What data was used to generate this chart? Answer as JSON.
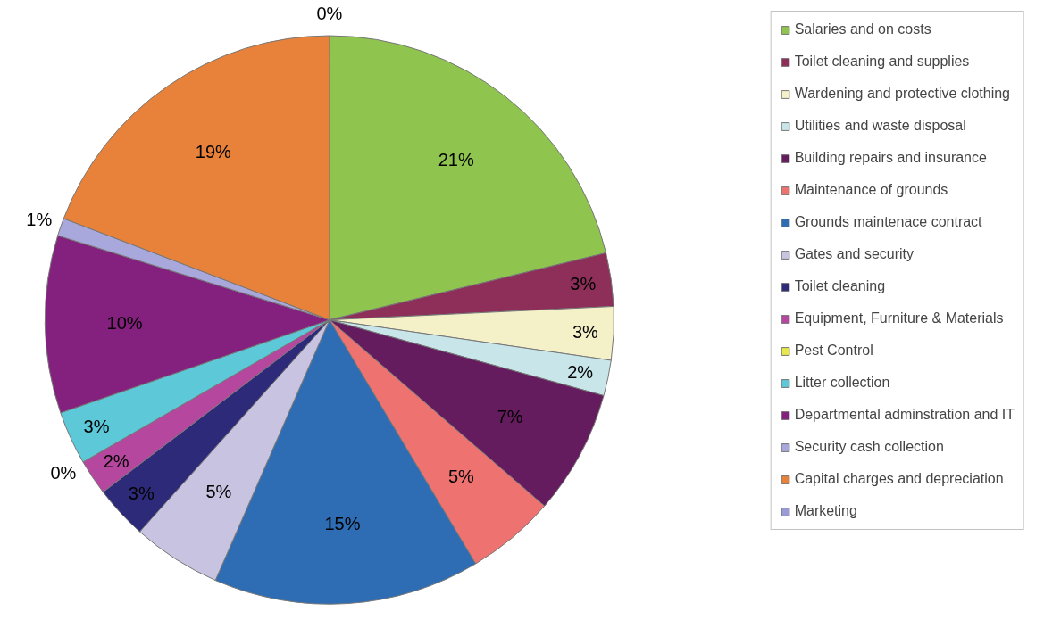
{
  "chart_data": {
    "type": "pie",
    "categories": [
      "Salaries and on costs",
      "Toilet cleaning and supplies",
      "Wardening and protective clothing",
      "Utilities and waste disposal",
      "Building repairs and insurance",
      "Maintenance of grounds",
      "Grounds maintenace contract",
      "Gates and security",
      "Toilet cleaning",
      "Equipment, Furniture & Materials",
      "Pest Control",
      "Litter collection",
      "Departmental adminstration and IT",
      "Security cash collection",
      "Capital charges and depreciation",
      "Marketing"
    ],
    "values": [
      21,
      3,
      3,
      2,
      7,
      5,
      15,
      5,
      3,
      2,
      0,
      3,
      10,
      1,
      19,
      0
    ],
    "value_labels": [
      "21%",
      "3%",
      "3%",
      "2%",
      "7%",
      "5%",
      "15%",
      "5%",
      "3%",
      "2%",
      "0%",
      "3%",
      "10%",
      "1%",
      "19%",
      "0%"
    ],
    "colors": [
      "#8fc44e",
      "#8e2f5a",
      "#f4f0c8",
      "#c8e6ea",
      "#641c5e",
      "#ee7370",
      "#2e6db4",
      "#c8c3e0",
      "#2e2a7a",
      "#b5479f",
      "#e8e84c",
      "#5cc8d8",
      "#84207e",
      "#a8a8dc",
      "#e8823a",
      "#9a9ad8"
    ],
    "legend": "right"
  }
}
